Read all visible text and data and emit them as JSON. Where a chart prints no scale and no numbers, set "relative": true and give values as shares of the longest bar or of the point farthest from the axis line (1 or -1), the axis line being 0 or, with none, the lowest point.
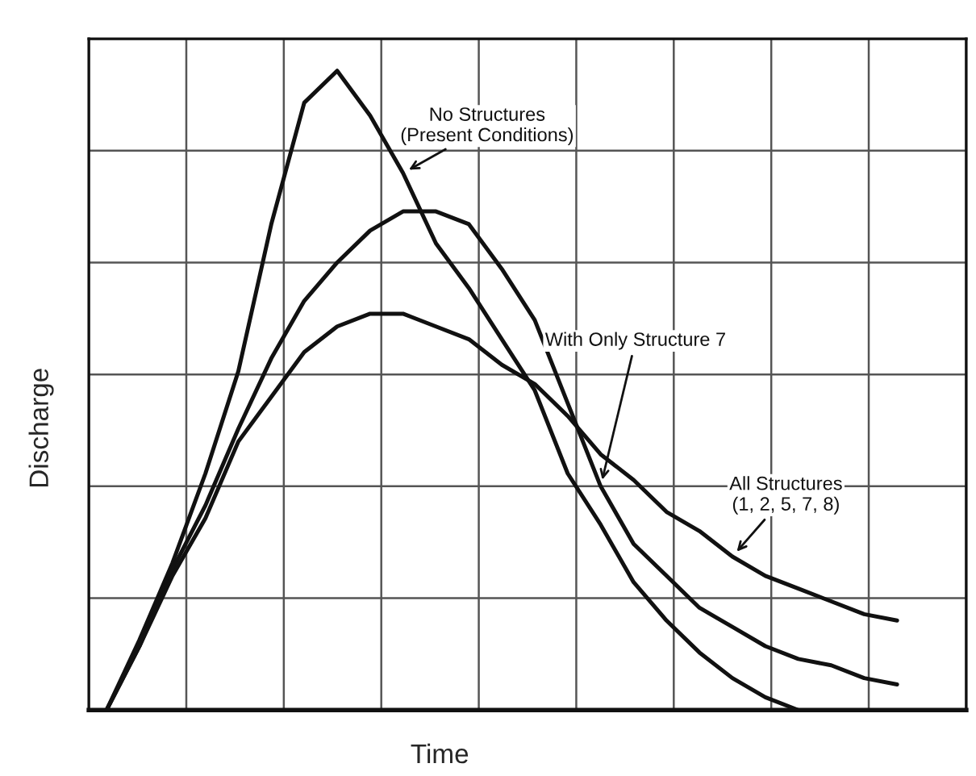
{
  "chart_data": {
    "type": "line",
    "relative": true,
    "xlabel": "Time",
    "ylabel": "Discharge",
    "grid": true,
    "tick_labels": false,
    "marker": "none",
    "line_style": "solid",
    "categories": [
      null,
      null,
      null,
      null,
      null,
      null,
      null,
      null,
      null,
      null,
      null,
      null,
      null,
      null,
      null,
      null,
      null,
      null,
      null,
      null,
      null,
      null,
      null,
      null,
      null
    ],
    "series": [
      {
        "name": "No Structures\n(Present Conditions)",
        "color": "#111111",
        "values": [
          0,
          0.11,
          0.23,
          0.37,
          0.53,
          0.76,
          0.95,
          1.0,
          0.93,
          0.84,
          0.73,
          0.66,
          0.58,
          0.5,
          0.37,
          0.29,
          0.2,
          0.14,
          0.09,
          0.05,
          0.02,
          0.0,
          null,
          null,
          null
        ]
      },
      {
        "name": "With Only Structure 7",
        "color": "#111111",
        "values": [
          0,
          0.1,
          0.22,
          0.32,
          0.44,
          0.55,
          0.64,
          0.7,
          0.75,
          0.78,
          0.78,
          0.76,
          0.69,
          0.61,
          0.48,
          0.35,
          0.26,
          0.21,
          0.16,
          0.13,
          0.1,
          0.08,
          0.07,
          0.05,
          0.04
        ]
      },
      {
        "name": "All Structures\n(1, 2, 5, 7, 8)",
        "color": "#111111",
        "values": [
          0,
          0.1,
          0.21,
          0.3,
          0.42,
          0.49,
          0.56,
          0.6,
          0.62,
          0.62,
          0.6,
          0.58,
          0.54,
          0.51,
          0.46,
          0.4,
          0.36,
          0.31,
          0.28,
          0.24,
          0.21,
          0.19,
          0.17,
          0.15,
          0.14
        ]
      }
    ]
  }
}
